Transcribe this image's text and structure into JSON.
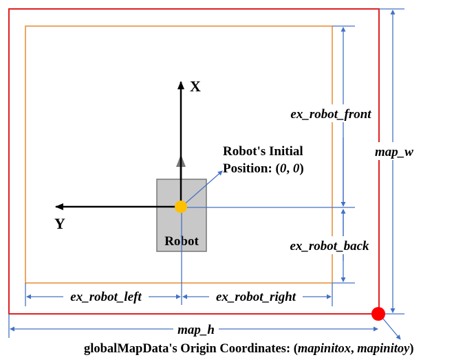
{
  "labels": {
    "x_axis": "X",
    "y_axis": "Y",
    "robot": "Robot",
    "initial_line1": "Robot's Initial",
    "initial_line2_prefix": "Position: (",
    "initial_zero_a": "0",
    "initial_comma": ", ",
    "initial_zero_b": "0",
    "initial_close": ")",
    "ex_robot_front": "ex_robot_front",
    "ex_robot_back": "ex_robot_back",
    "ex_robot_left": "ex_robot_left",
    "ex_robot_right": "ex_robot_right",
    "map_w": "map_w",
    "map_h": "map_h",
    "origin_prefix": "globalMapData's Origin Coordinates: (",
    "origin_x": "mapinitox",
    "origin_comma": ", ",
    "origin_y": "mapinitoy",
    "origin_close": ")"
  },
  "colors": {
    "map_border": "#e02020",
    "region_border": "#e8913a",
    "dimension_lines": "#4472c4",
    "axes": "#000000",
    "robot_fill": "#c8c8c8",
    "robot_border": "#777777",
    "robot_origin": "#ffc000",
    "map_origin": "#ff0000"
  }
}
